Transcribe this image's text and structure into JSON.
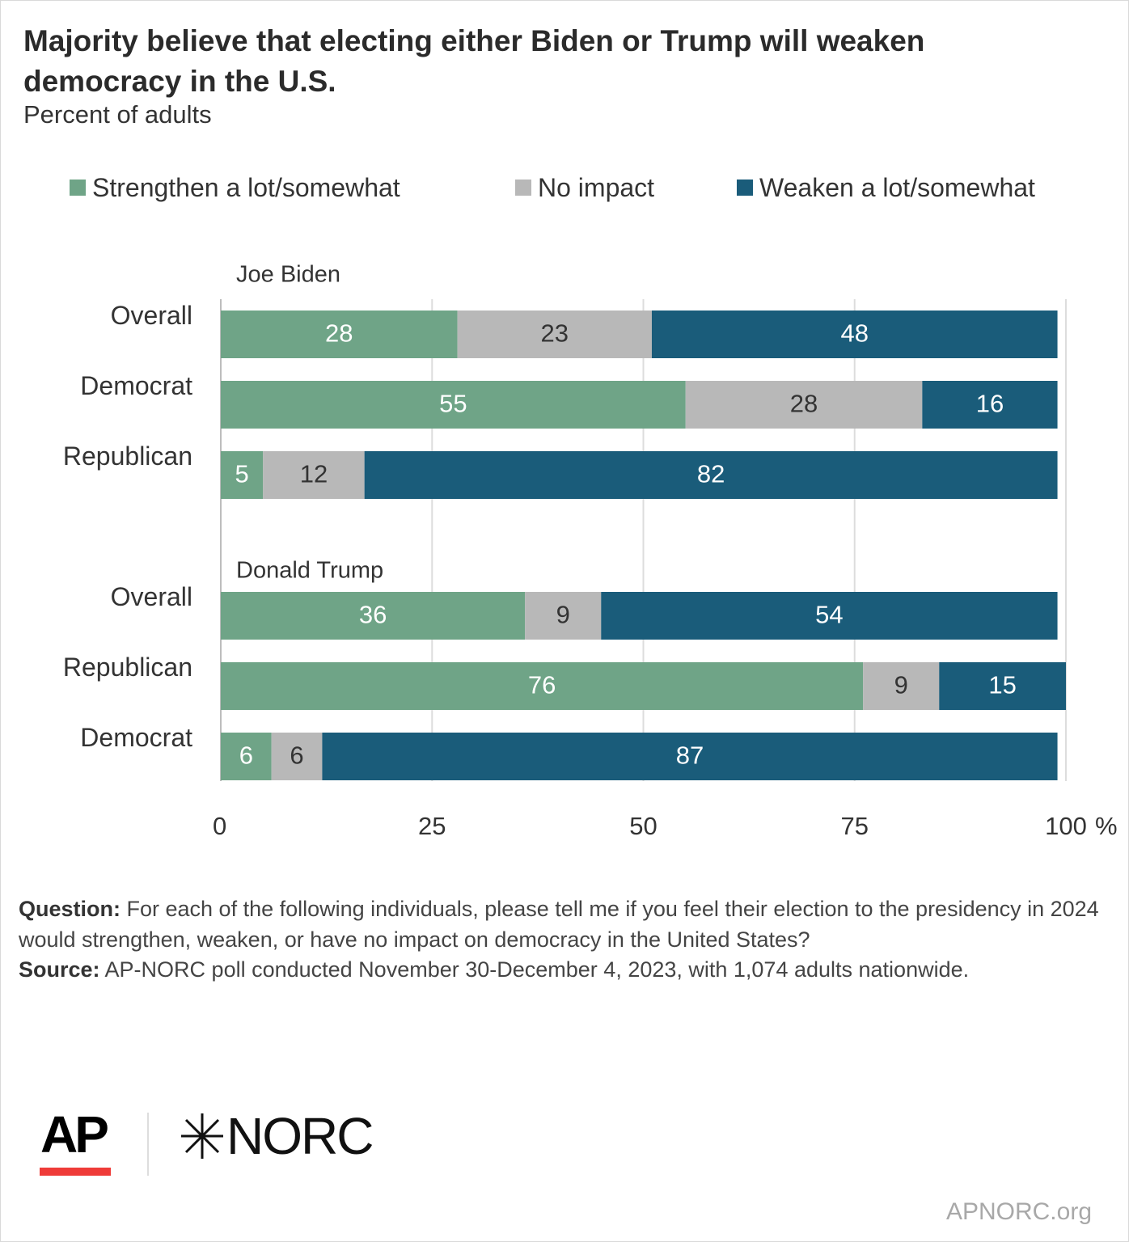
{
  "header": {
    "title": "Majority believe that electing either Biden or Trump will weaken democracy in the U.S.",
    "subtitle": "Percent of adults"
  },
  "legend": [
    {
      "label": "Strengthen a lot/somewhat",
      "color": "#6fa487"
    },
    {
      "label": "No impact",
      "color": "#b8b8b8"
    },
    {
      "label": "Weaken a lot/somewhat",
      "color": "#1a5c7a"
    }
  ],
  "chart_data": {
    "type": "bar",
    "orientation": "horizontal",
    "stacked": true,
    "xlim": [
      0,
      100
    ],
    "xticks": [
      "0",
      "25",
      "50",
      "75",
      "100"
    ],
    "x_unit": "%",
    "grid": true,
    "legend_position": "top",
    "series_names": [
      "Strengthen a lot/somewhat",
      "No impact",
      "Weaken a lot/somewhat"
    ],
    "groups": [
      {
        "name": "Joe Biden",
        "rows": [
          {
            "label": "Overall",
            "values": [
              28,
              23,
              48
            ]
          },
          {
            "label": "Democrat",
            "values": [
              55,
              28,
              16
            ]
          },
          {
            "label": "Republican",
            "values": [
              5,
              12,
              82
            ]
          }
        ]
      },
      {
        "name": "Donald Trump",
        "rows": [
          {
            "label": "Overall",
            "values": [
              36,
              9,
              54
            ]
          },
          {
            "label": "Republican",
            "values": [
              76,
              9,
              15
            ]
          },
          {
            "label": "Democrat",
            "values": [
              6,
              6,
              87
            ]
          }
        ]
      }
    ]
  },
  "notes": {
    "question_label": "Question:",
    "question_text": " For each of the following individuals, please tell me if you feel their election to the presidency in 2024 would strengthen, weaken, or have no impact on democracy in the United States?",
    "source_label": "Source:",
    "source_text": " AP-NORC poll conducted November 30-December 4, 2023, with 1,074 adults nationwide."
  },
  "footer": {
    "ap_logo": "AP",
    "norc_logo": "NORC",
    "site": "APNORC.org"
  }
}
